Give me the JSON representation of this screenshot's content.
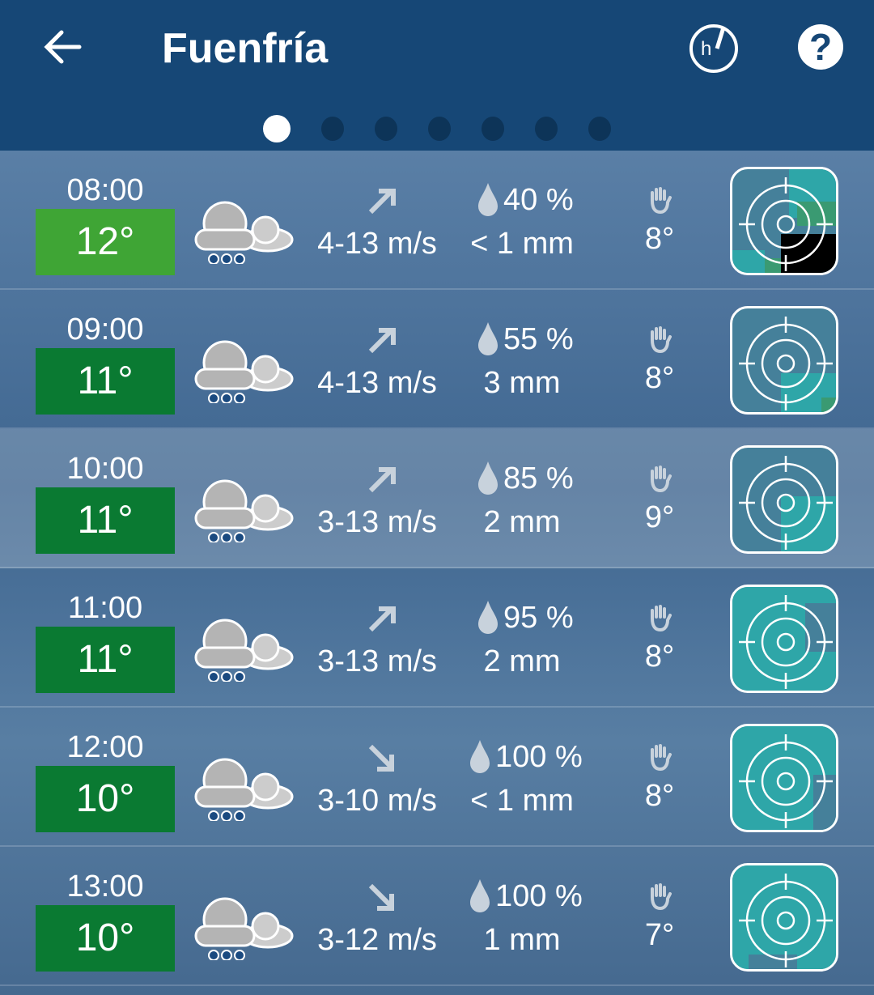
{
  "header": {
    "title": "Fuenfría",
    "back_icon": "arrow-left-icon",
    "hour_icon": "h-clock-icon",
    "help_icon": "question-icon",
    "help_label": "?"
  },
  "pager": {
    "count": 7,
    "active": 0
  },
  "colors": {
    "header": "#164776",
    "temp_warm": "#3fa535",
    "temp": "#0a7a32",
    "radar_teal": "#2ea6a8",
    "radar_green": "#3a9a72"
  },
  "rows": [
    {
      "time": "08:00",
      "temp": "12°",
      "wind_dir": "north-east",
      "wind": "4-13 m/s",
      "prob": "40 %",
      "precip": "< 1 mm",
      "feels": "8°"
    },
    {
      "time": "09:00",
      "temp": "11°",
      "wind_dir": "north-east",
      "wind": "4-13 m/s",
      "prob": "55 %",
      "precip": "3 mm",
      "feels": "8°"
    },
    {
      "time": "10:00",
      "temp": "11°",
      "wind_dir": "north-east",
      "wind": "3-13 m/s",
      "prob": "85 %",
      "precip": "2 mm",
      "feels": "9°"
    },
    {
      "time": "11:00",
      "temp": "11°",
      "wind_dir": "north-east",
      "wind": "3-13 m/s",
      "prob": "95 %",
      "precip": "2 mm",
      "feels": "8°"
    },
    {
      "time": "12:00",
      "temp": "10°",
      "wind_dir": "south-east",
      "wind": "3-10 m/s",
      "prob": "100 %",
      "precip": "< 1 mm",
      "feels": "8°"
    },
    {
      "time": "13:00",
      "temp": "10°",
      "wind_dir": "south-east",
      "wind": "3-12 m/s",
      "prob": "100 %",
      "precip": "1 mm",
      "feels": "7°"
    }
  ]
}
